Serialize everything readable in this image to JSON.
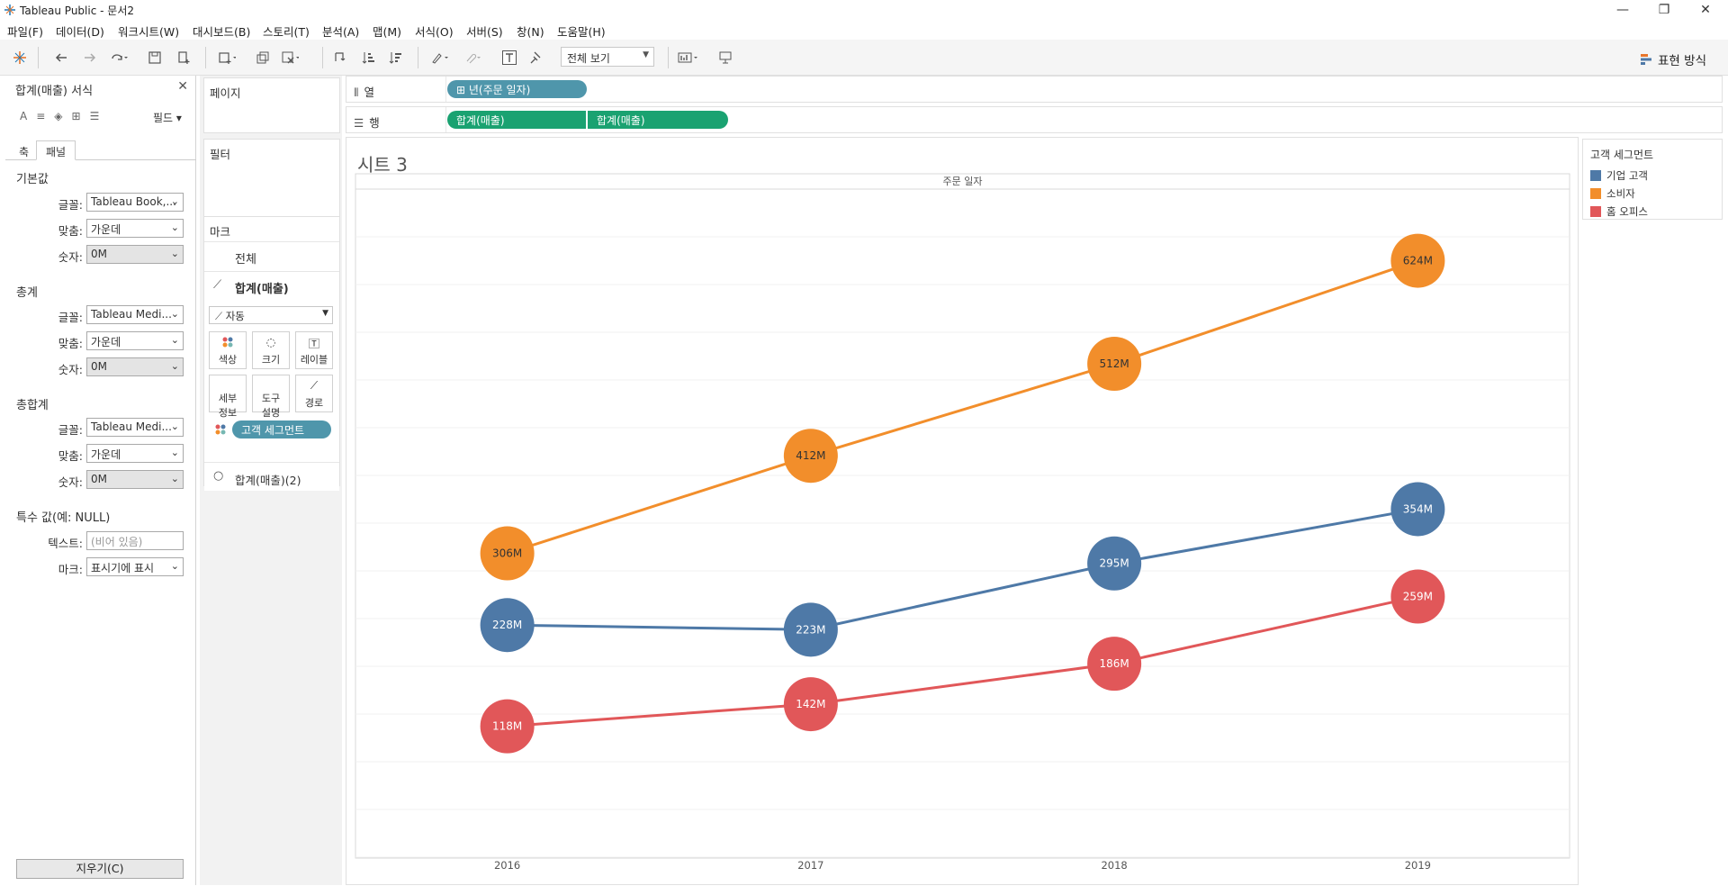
{
  "window": {
    "title": "Tableau Public - 문서2"
  },
  "menu": [
    "파일(F)",
    "데이터(D)",
    "워크시트(W)",
    "대시보드(B)",
    "스토리(T)",
    "분석(A)",
    "맵(M)",
    "서식(O)",
    "서버(S)",
    "창(N)",
    "도움말(H)"
  ],
  "toolbar": {
    "fit_value": "전체 보기",
    "show_me": "표현 방식"
  },
  "format_panel": {
    "header": "합계(매출) 서식",
    "fields_button": "필드",
    "tabs": [
      "축",
      "패널"
    ],
    "sections": [
      {
        "title": "기본값",
        "font": "Tableau Book,...",
        "align": "가운데",
        "number": "0M"
      },
      {
        "title": "총계",
        "font": "Tableau Medi...",
        "align": "가운데",
        "number": "0M"
      },
      {
        "title": "총합계",
        "font": "Tableau Medi...",
        "align": "가운데",
        "number": "0M"
      }
    ],
    "labels": {
      "font": "글꼴:",
      "align": "맞춤:",
      "number": "숫자:",
      "text": "텍스트:",
      "mark": "마크:"
    },
    "special_title": "특수 값(예: NULL)",
    "text_placeholder": "(비어 있음)",
    "mark_value": "표시기에 표시",
    "clear_button": "지우기(C)"
  },
  "cards": {
    "pages": "페이지",
    "filters": "필터",
    "marks": "마크",
    "marks_all": "전체",
    "marks_measure1": "합계(매출)",
    "mark_type": "자동",
    "buttons": [
      "색상",
      "크기",
      "레이블",
      "세부\n정보",
      "도구\n설명",
      "경로"
    ],
    "color_pill": "고객 세그먼트",
    "marks_measure2": "합계(매출)(2)"
  },
  "shelves": {
    "columns_label": "열",
    "rows_label": "행",
    "columns_pill": "년(주문 일자)",
    "rows_pills": [
      "합계(매출)",
      "합계(매출)"
    ]
  },
  "sheet": {
    "title": "시트 3"
  },
  "legend": {
    "title": "고객 세그먼트",
    "items": [
      {
        "label": "기업 고객",
        "color": "#4e79a7"
      },
      {
        "label": "소비자",
        "color": "#f28e2b"
      },
      {
        "label": "홈 오피스",
        "color": "#e15759"
      }
    ]
  },
  "chart_data": {
    "type": "line",
    "title": "",
    "xlabel": "주문 일자",
    "ylabel": "",
    "categories": [
      "2016",
      "2017",
      "2018",
      "2019"
    ],
    "series": [
      {
        "name": "기업 고객",
        "color": "#4e79a7",
        "values": [
          228,
          223,
          295,
          354
        ],
        "labels": [
          "228M",
          "223M",
          "295M",
          "354M"
        ]
      },
      {
        "name": "소비자",
        "color": "#f28e2b",
        "values": [
          306,
          412,
          512,
          624
        ],
        "labels": [
          "306M",
          "412M",
          "512M",
          "624M"
        ]
      },
      {
        "name": "홈 오피스",
        "color": "#e15759",
        "values": [
          118,
          142,
          186,
          259
        ],
        "labels": [
          "118M",
          "142M",
          "186M",
          "259M"
        ]
      }
    ],
    "grid": true,
    "legend_position": "right"
  }
}
